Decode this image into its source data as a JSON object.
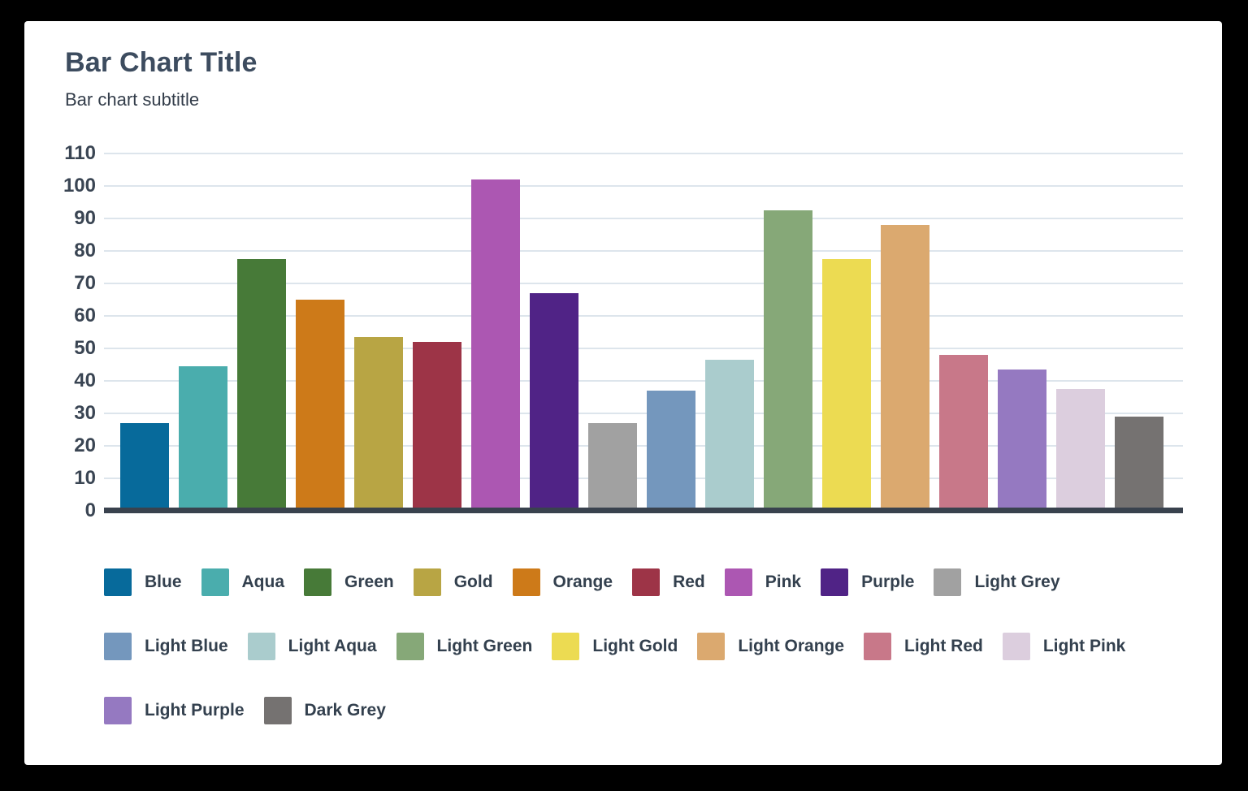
{
  "style": {
    "page_background": "#000000",
    "card_background": "#ffffff",
    "axis_line_color": "#39424e",
    "gridline_color": "#dde5ec",
    "title_color": "#3d4c5f",
    "subtitle_color": "#333d4a",
    "tick_label_color": "#3a4553",
    "legend_text_color": "#33404e"
  },
  "header": {
    "title": "Bar Chart Title",
    "subtitle": "Bar chart subtitle"
  },
  "chart_data": {
    "type": "bar",
    "title": "Bar Chart Title",
    "subtitle": "Bar chart subtitle",
    "xlabel": "",
    "ylabel": "",
    "ylim": [
      0,
      110
    ],
    "yticks": [
      0,
      10,
      20,
      30,
      40,
      50,
      60,
      70,
      80,
      90,
      100,
      110
    ],
    "grid": "horizontal",
    "legend_position": "bottom",
    "categories": [
      "Blue",
      "Aqua",
      "Green",
      "Orange",
      "Gold",
      "Red",
      "Pink",
      "Purple",
      "Light Grey",
      "Light Blue",
      "Light Aqua",
      "Light Green",
      "Light Gold",
      "Light Orange",
      "Light Red",
      "Light Purple",
      "Light Pink",
      "Dark Grey"
    ],
    "values": [
      27,
      44.5,
      77.5,
      65,
      53.5,
      52,
      102,
      67,
      27,
      37,
      46.5,
      92.5,
      77.5,
      88,
      48,
      43.5,
      37.5,
      29
    ],
    "bars": [
      {
        "label": "Blue",
        "value": 27,
        "color": "#076a9b"
      },
      {
        "label": "Aqua",
        "value": 44.5,
        "color": "#4aadad"
      },
      {
        "label": "Green",
        "value": 77.5,
        "color": "#477a38"
      },
      {
        "label": "Orange",
        "value": 65,
        "color": "#cd7a19"
      },
      {
        "label": "Gold",
        "value": 53.5,
        "color": "#b8a544"
      },
      {
        "label": "Red",
        "value": 52,
        "color": "#9d3447"
      },
      {
        "label": "Pink",
        "value": 102,
        "color": "#ac57b2"
      },
      {
        "label": "Purple",
        "value": 67,
        "color": "#502386"
      },
      {
        "label": "Light Grey",
        "value": 27,
        "color": "#a1a1a1"
      },
      {
        "label": "Light Blue",
        "value": 37,
        "color": "#7497bd"
      },
      {
        "label": "Light Aqua",
        "value": 46.5,
        "color": "#aacccd"
      },
      {
        "label": "Light Green",
        "value": 92.5,
        "color": "#86a878"
      },
      {
        "label": "Light Gold",
        "value": 77.5,
        "color": "#ecdb52"
      },
      {
        "label": "Light Orange",
        "value": 88,
        "color": "#dba96f"
      },
      {
        "label": "Light Red",
        "value": 48,
        "color": "#c87889"
      },
      {
        "label": "Light Purple",
        "value": 43.5,
        "color": "#9579c1"
      },
      {
        "label": "Light Pink",
        "value": 37.5,
        "color": "#dccede"
      },
      {
        "label": "Dark Grey",
        "value": 29,
        "color": "#757271"
      }
    ]
  },
  "legend": {
    "rows": [
      [
        {
          "label": "Blue",
          "color": "#076a9b"
        },
        {
          "label": "Aqua",
          "color": "#4aadad"
        },
        {
          "label": "Green",
          "color": "#477a38"
        },
        {
          "label": "Gold",
          "color": "#b8a544"
        },
        {
          "label": "Orange",
          "color": "#cd7a19"
        },
        {
          "label": "Red",
          "color": "#9d3447"
        },
        {
          "label": "Pink",
          "color": "#ac57b2"
        },
        {
          "label": "Purple",
          "color": "#502386"
        },
        {
          "label": "Light Grey",
          "color": "#a1a1a1"
        }
      ],
      [
        {
          "label": "Light Blue",
          "color": "#7497bd"
        },
        {
          "label": "Light Aqua",
          "color": "#aacccd"
        },
        {
          "label": "Light Green",
          "color": "#86a878"
        },
        {
          "label": "Light Gold",
          "color": "#ecdb52"
        },
        {
          "label": "Light Orange",
          "color": "#dba96f"
        },
        {
          "label": "Light Red",
          "color": "#c87889"
        },
        {
          "label": "Light Pink",
          "color": "#dccede"
        }
      ],
      [
        {
          "label": "Light Purple",
          "color": "#9579c1"
        },
        {
          "label": "Dark Grey",
          "color": "#757271"
        }
      ]
    ]
  }
}
